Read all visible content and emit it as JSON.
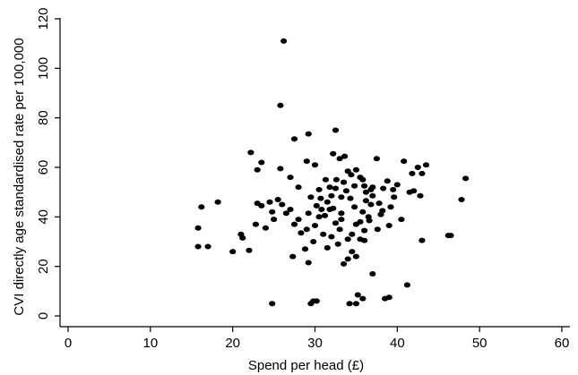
{
  "chart_data": {
    "type": "scatter",
    "title": "",
    "xlabel": "Spend per head (£)",
    "ylabel": "CVI directly age standardised rate per 100,000",
    "xlim": [
      0,
      60
    ],
    "ylim": [
      0,
      120
    ],
    "x_ticks": [
      "0",
      "10",
      "20",
      "30",
      "40",
      "50",
      "60"
    ],
    "y_ticks": [
      "0",
      "20",
      "40",
      "60",
      "80",
      "100",
      "120"
    ],
    "grid": false,
    "legend": "none",
    "marker_color": "#000000",
    "points": [
      [
        26.2,
        111
      ],
      [
        25.8,
        85
      ],
      [
        32.5,
        75
      ],
      [
        27.5,
        71.5
      ],
      [
        29.2,
        73.5
      ],
      [
        22.2,
        66
      ],
      [
        23.5,
        62
      ],
      [
        23.0,
        59
      ],
      [
        25.8,
        59.5
      ],
      [
        27.0,
        56
      ],
      [
        28.0,
        52
      ],
      [
        29.0,
        62.5
      ],
      [
        30.0,
        61
      ],
      [
        31.3,
        55
      ],
      [
        32.2,
        65.5
      ],
      [
        33.0,
        63.5
      ],
      [
        33.6,
        64.5
      ],
      [
        34.0,
        58.5
      ],
      [
        34.4,
        57
      ],
      [
        35.0,
        59
      ],
      [
        35.5,
        56
      ],
      [
        36.0,
        52.5
      ],
      [
        37.0,
        52
      ],
      [
        37.5,
        63.5
      ],
      [
        38.3,
        51.5
      ],
      [
        39.5,
        51
      ],
      [
        40.0,
        53
      ],
      [
        40.8,
        62.5
      ],
      [
        41.8,
        57.5
      ],
      [
        42.5,
        60
      ],
      [
        43.0,
        57.5
      ],
      [
        43.5,
        61
      ],
      [
        42.0,
        50.5
      ],
      [
        41.5,
        50
      ],
      [
        42.8,
        48.5
      ],
      [
        48.3,
        55.5
      ],
      [
        47.8,
        47
      ],
      [
        46.2,
        32.5
      ],
      [
        46.5,
        32.5
      ],
      [
        43.0,
        30.5
      ],
      [
        41.2,
        12.5
      ],
      [
        40.5,
        39
      ],
      [
        39.0,
        36.5
      ],
      [
        38.2,
        42.5
      ],
      [
        37.8,
        45.5
      ],
      [
        37.0,
        48.5
      ],
      [
        36.5,
        40
      ],
      [
        36.0,
        34.5
      ],
      [
        35.5,
        31
      ],
      [
        35.0,
        37
      ],
      [
        34.8,
        44
      ],
      [
        34.3,
        47.5
      ],
      [
        33.8,
        50.5
      ],
      [
        33.5,
        54
      ],
      [
        33.2,
        41.5
      ],
      [
        33.0,
        35
      ],
      [
        32.8,
        29
      ],
      [
        32.5,
        37.5
      ],
      [
        32.2,
        43.5
      ],
      [
        32.0,
        48.5
      ],
      [
        31.8,
        52
      ],
      [
        31.5,
        46
      ],
      [
        31.2,
        40.5
      ],
      [
        31.0,
        33
      ],
      [
        30.5,
        51
      ],
      [
        30.2,
        44.5
      ],
      [
        30.0,
        36.5
      ],
      [
        29.8,
        30
      ],
      [
        29.5,
        48
      ],
      [
        29.2,
        41.5
      ],
      [
        29.0,
        35
      ],
      [
        28.8,
        27
      ],
      [
        28.0,
        39
      ],
      [
        27.5,
        37
      ],
      [
        27.0,
        43
      ],
      [
        26.5,
        41.5
      ],
      [
        26.0,
        45
      ],
      [
        25.5,
        47
      ],
      [
        25.0,
        39
      ],
      [
        24.8,
        42
      ],
      [
        24.5,
        46
      ],
      [
        24.0,
        35.5
      ],
      [
        23.5,
        44.5
      ],
      [
        23.0,
        45.5
      ],
      [
        22.8,
        37
      ],
      [
        21.0,
        33
      ],
      [
        21.2,
        31.5
      ],
      [
        22.0,
        26.5
      ],
      [
        20.0,
        26
      ],
      [
        18.2,
        46
      ],
      [
        16.2,
        44
      ],
      [
        15.8,
        35.5
      ],
      [
        15.8,
        28
      ],
      [
        17.0,
        28
      ],
      [
        27.3,
        24
      ],
      [
        29.2,
        21.5
      ],
      [
        33.5,
        21
      ],
      [
        34.0,
        23
      ],
      [
        34.5,
        26
      ],
      [
        35.0,
        24
      ],
      [
        35.5,
        38
      ],
      [
        36.0,
        30.5
      ],
      [
        37.0,
        17
      ],
      [
        38.5,
        7
      ],
      [
        39.0,
        7.5
      ],
      [
        35.0,
        5
      ],
      [
        35.2,
        8.5
      ],
      [
        34.2,
        5
      ],
      [
        35.8,
        7
      ],
      [
        30.2,
        6
      ],
      [
        29.5,
        5
      ],
      [
        29.8,
        6
      ],
      [
        24.8,
        5
      ],
      [
        28.3,
        33.5
      ],
      [
        30.5,
        40
      ],
      [
        31.5,
        27.5
      ],
      [
        36.8,
        45
      ],
      [
        36.2,
        50
      ],
      [
        34.8,
        52.5
      ],
      [
        33.2,
        48
      ],
      [
        32.5,
        51.5
      ],
      [
        31.8,
        43
      ],
      [
        30.8,
        43
      ],
      [
        35.8,
        42
      ],
      [
        36.6,
        38.5
      ],
      [
        38.0,
        41
      ],
      [
        39.6,
        48
      ],
      [
        34.0,
        31
      ],
      [
        33.2,
        39
      ],
      [
        34.5,
        33
      ],
      [
        30.7,
        47.5
      ],
      [
        32.6,
        55
      ],
      [
        35.8,
        55
      ],
      [
        36.8,
        51
      ],
      [
        37.6,
        35
      ],
      [
        32.0,
        32
      ],
      [
        36.2,
        46.5
      ],
      [
        38.8,
        54.5
      ],
      [
        39.2,
        44
      ]
    ]
  }
}
